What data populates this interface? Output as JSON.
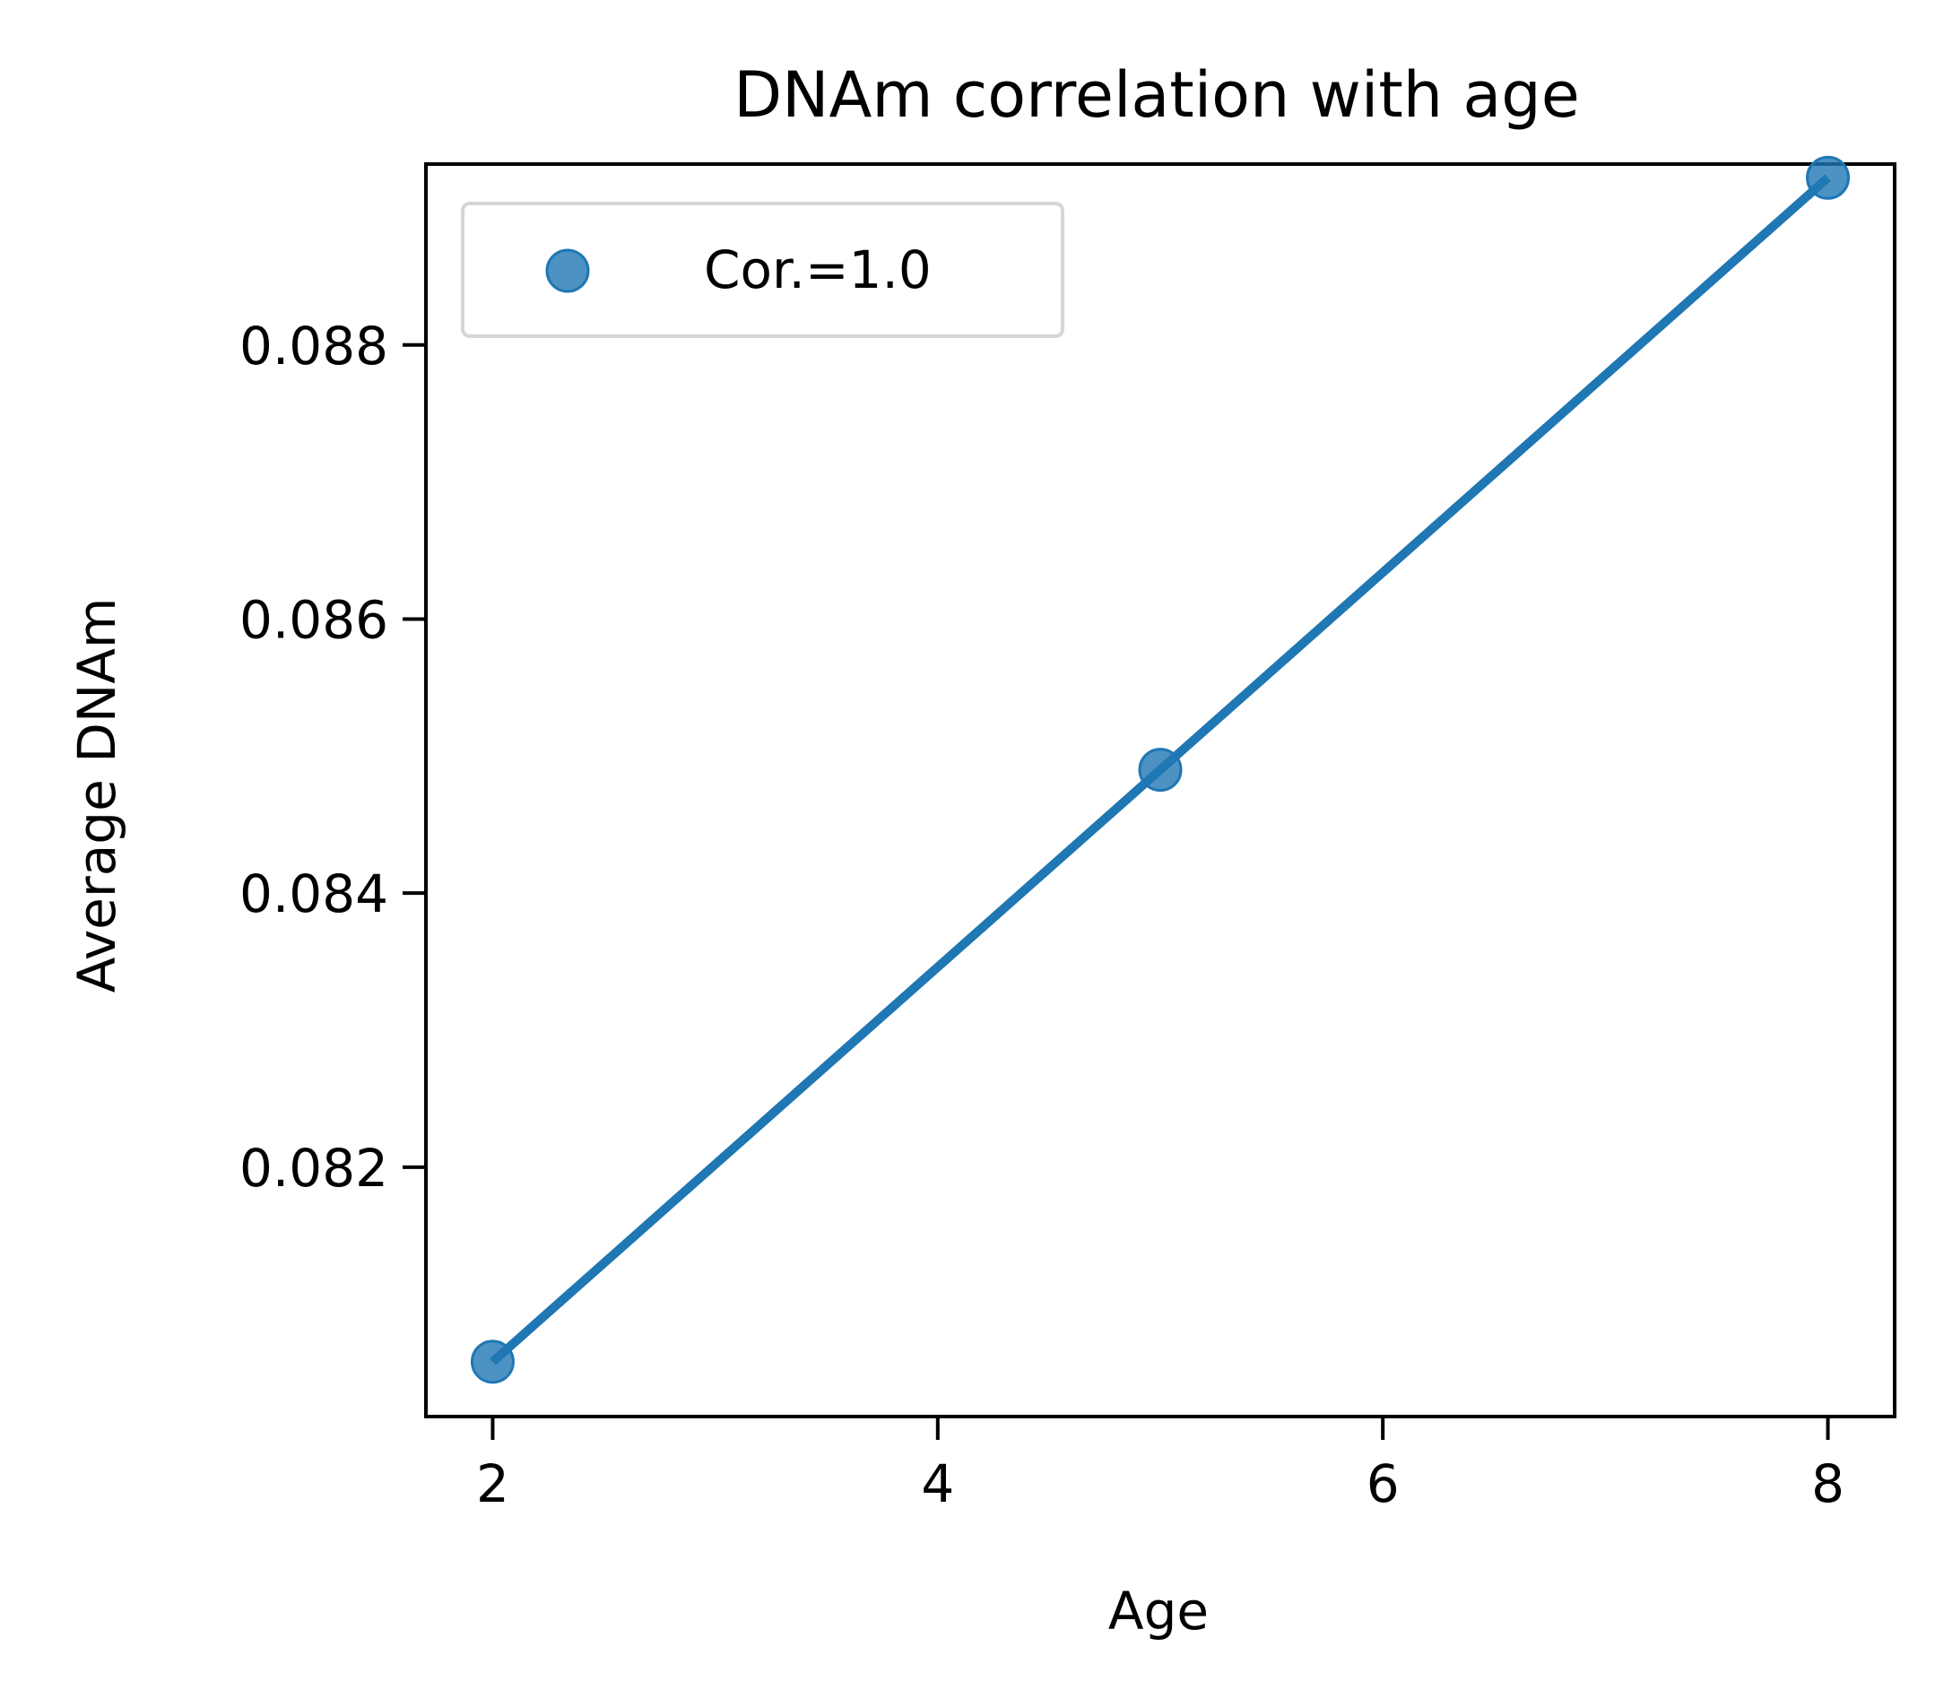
{
  "chart_data": {
    "type": "scatter",
    "title": "DNAm correlation with age",
    "xlabel": "Age",
    "ylabel": "Average DNAm",
    "xlim": [
      1.7,
      8.3
    ],
    "ylim": [
      0.08018,
      0.08932
    ],
    "xticks": [
      2,
      4,
      6,
      8
    ],
    "xtick_labels": [
      "2",
      "4",
      "6",
      "8"
    ],
    "yticks": [
      0.082,
      0.084,
      0.086,
      0.088
    ],
    "ytick_labels": [
      "0.082",
      "0.084",
      "0.086",
      "0.088"
    ],
    "series": [
      {
        "name": "Cor.=1.0",
        "x": [
          2,
          5,
          8
        ],
        "y": [
          0.08058,
          0.0849,
          0.08922
        ],
        "color": "#1f77b4"
      }
    ],
    "fit_line": {
      "x": [
        2,
        8
      ],
      "y": [
        0.08058,
        0.08922
      ],
      "color": "#1f77b4"
    },
    "legend": {
      "position": "upper-left",
      "entries": [
        "Cor.=1.0"
      ]
    },
    "grid": false
  }
}
